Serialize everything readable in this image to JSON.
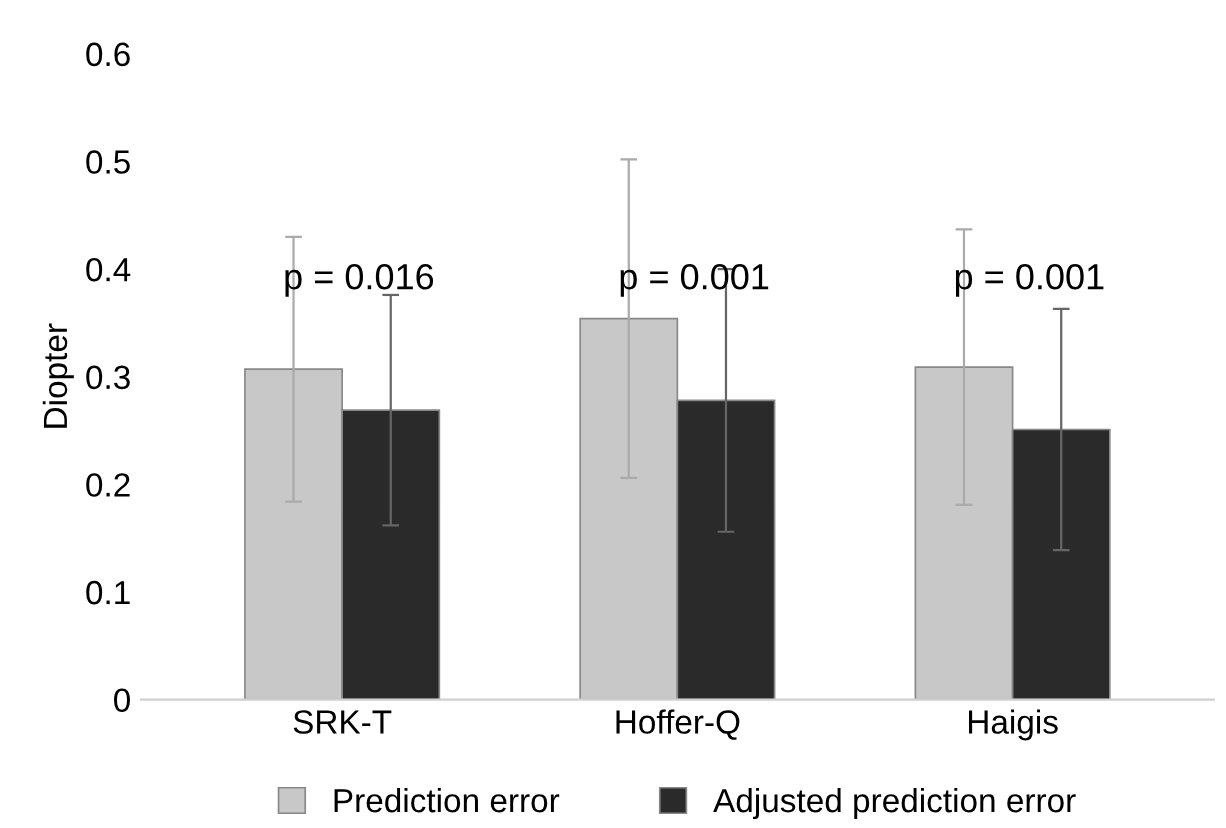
{
  "chart_data": {
    "type": "bar",
    "ylabel": "Diopter",
    "categories": [
      "SRK-T",
      "Hoffer-Q",
      "Haigis"
    ],
    "series": [
      {
        "name": "Prediction error",
        "color": "#c8c8c8",
        "values": [
          0.307,
          0.354,
          0.309
        ],
        "errors": [
          0.123,
          0.148,
          0.128
        ]
      },
      {
        "name": "Adjusted prediction error",
        "color": "#2a2a2a",
        "values": [
          0.269,
          0.278,
          0.251
        ],
        "errors": [
          0.107,
          0.122,
          0.112
        ]
      }
    ],
    "ylim": [
      0,
      0.6
    ],
    "yticks": [
      0,
      0.1,
      0.2,
      0.3,
      0.4,
      0.5,
      0.6
    ],
    "annotations": [
      "p = 0.016",
      "p = 0.001",
      "p = 0.001"
    ],
    "legend": "bottom",
    "grid": false
  }
}
